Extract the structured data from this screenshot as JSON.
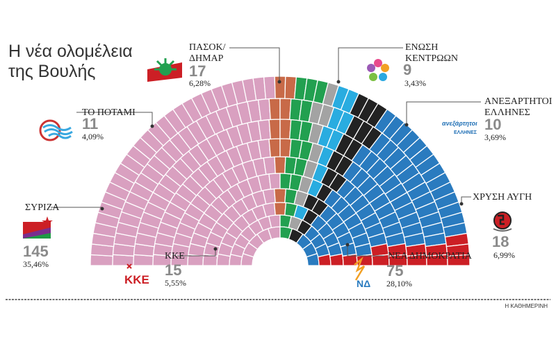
{
  "title_line1": "Η νέα ολομέλεια",
  "title_line2": "της Βουλής",
  "source": "Η ΚΑΘΗΜΕΡΙΝΗ",
  "chart_data": {
    "type": "parliament",
    "title": "Η νέα ολομέλεια της Βουλής",
    "total_seats": 300,
    "parties": [
      {
        "name": "ΣΥΡΙΖΑ",
        "seats": 145,
        "pct": "35,46%",
        "color": "#d9a0c0"
      },
      {
        "name": "ΤΟ ΠΟΤΑΜΙ",
        "seats": 11,
        "pct": "4,09%",
        "color": "#c86a48"
      },
      {
        "name": "ΠΑΣΟΚ/ΔΗΜΑΡ",
        "name_line1": "ΠΑΣΟΚ/",
        "name_line2": "ΔΗΜΑΡ",
        "seats": 17,
        "pct": "6,28%",
        "color": "#22a050"
      },
      {
        "name": "ΕΝΩΣΗ ΚΕΝΤΡΩΩΝ",
        "name_line1": "ΕΝΩΣΗ",
        "name_line2": "ΚΕΝΤΡΩΩΝ",
        "seats": 9,
        "pct": "3,43%",
        "color": "#a3a3a3"
      },
      {
        "name": "ΑΝΕΞΑΡΤΗΤΟΙ ΕΛΛΗΝΕΣ",
        "name_line1": "ΑΝΕΞΑΡΤΗΤΟΙ",
        "name_line2": "ΕΛΛΗΝΕΣ",
        "seats": 10,
        "pct": "3,69%",
        "color": "#29ace0"
      },
      {
        "name": "ΧΡΥΣΗ ΑΥΓΗ",
        "seats": 18,
        "pct": "6,99%",
        "color": "#222222"
      },
      {
        "name": "ΝΕΑ ΔΗΜΟΚΡΑΤΙΑ",
        "seats": 75,
        "pct": "28,10%",
        "color": "#2a7bbf"
      },
      {
        "name": "ΚΚΕ",
        "seats": 15,
        "pct": "5,55%",
        "color": "#cc1f25"
      }
    ]
  },
  "logos": {
    "kke": "ΚΚΕ",
    "nd": "ΝΔ",
    "anel_line1": "ανεξάρτητοι",
    "anel_line2": "ΕΛΛΗΝΕΣ"
  }
}
